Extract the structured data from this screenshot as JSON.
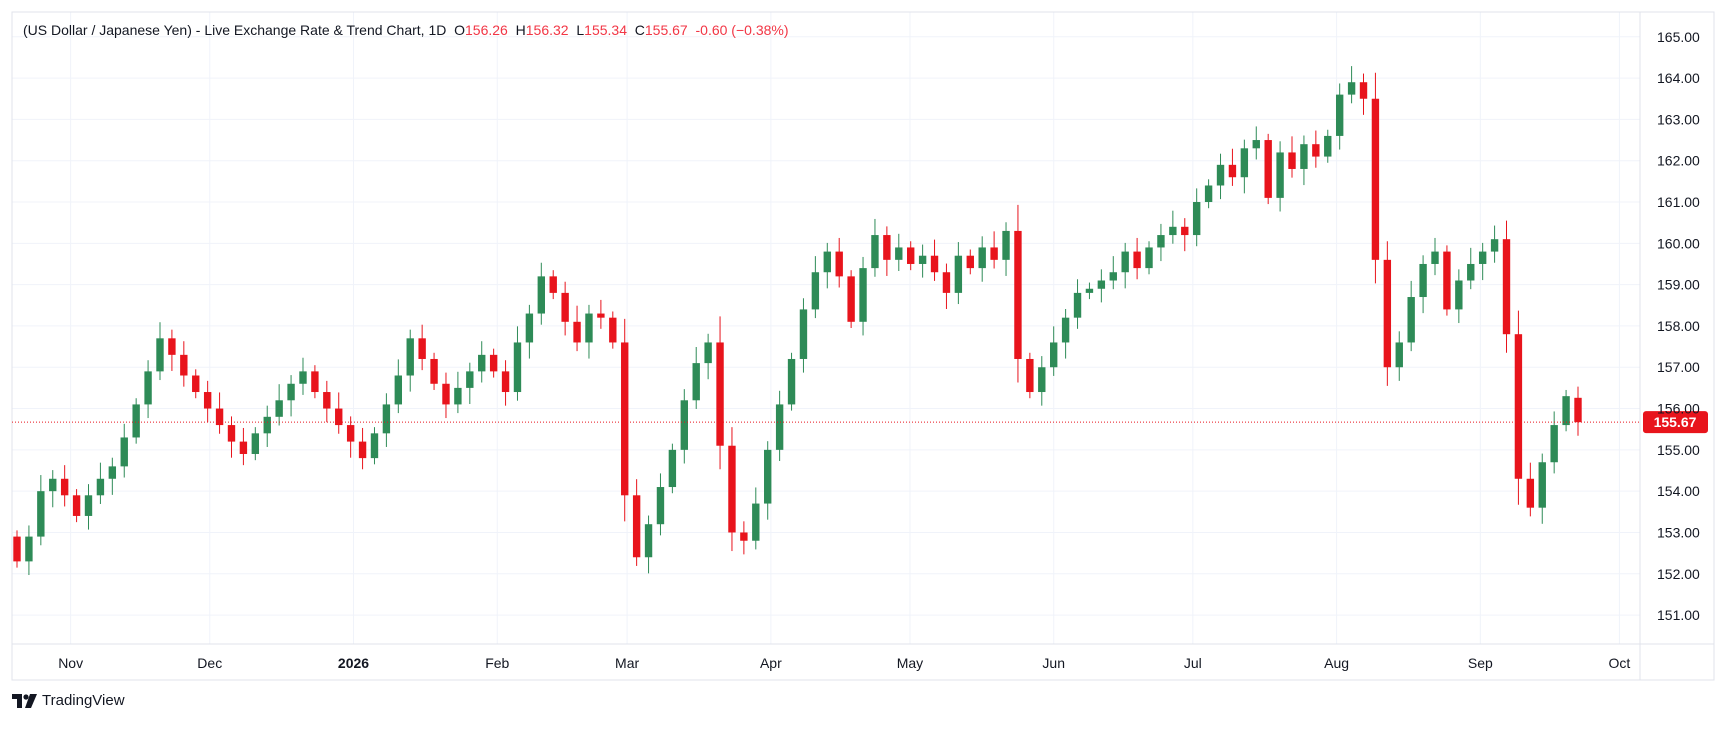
{
  "header": {
    "title": "(US Dollar / Japanese Yen) - Live Exchange Rate & Trend Chart, 1D",
    "o_label": "O",
    "o_value": "156.26",
    "h_label": "H",
    "h_value": "156.32",
    "l_label": "L",
    "l_value": "155.34",
    "c_label": "C",
    "c_value": "155.67",
    "change": "-0.60 (−0.38%)"
  },
  "brand": {
    "name": "TradingView"
  },
  "colors": {
    "up": "#2e8b57",
    "down": "#e8141c",
    "last_price": "#e8141c",
    "grid": "#f0f3fa",
    "text": "#131722"
  },
  "chart_data": {
    "type": "candlestick",
    "title": "(US Dollar / Japanese Yen) - Live Exchange Rate & Trend Chart, 1D",
    "interval": "1D",
    "ylim": [
      150.3,
      165.6
    ],
    "y_ticks": [
      165,
      164,
      163,
      162,
      161,
      160,
      159,
      158,
      157,
      156,
      155,
      154,
      153,
      152,
      151
    ],
    "x_ticks": [
      {
        "label": "Nov",
        "date": "2025-11-01"
      },
      {
        "label": "Dec",
        "date": "2025-12-01"
      },
      {
        "label": "2026",
        "date": "2026-01-01"
      },
      {
        "label": "Feb",
        "date": "2026-02-01"
      },
      {
        "label": "Mar",
        "date": "2026-03-01"
      },
      {
        "label": "Apr",
        "date": "2026-04-01"
      },
      {
        "label": "May",
        "date": "2026-05-01"
      },
      {
        "label": "Jun",
        "date": "2026-06-01"
      },
      {
        "label": "Jul",
        "date": "2026-07-01"
      },
      {
        "label": "Aug",
        "date": "2026-08-01"
      },
      {
        "label": "Sep",
        "date": "2026-09-01"
      },
      {
        "label": "Oct",
        "date": "2026-10-01"
      }
    ],
    "last_price": 155.67,
    "last_price_label": "155.67",
    "grid": true,
    "close_series": [
      152.3,
      152.9,
      154.0,
      154.3,
      153.9,
      153.4,
      153.9,
      154.3,
      154.6,
      155.3,
      156.1,
      156.9,
      157.7,
      157.3,
      156.8,
      156.4,
      156.0,
      155.6,
      155.2,
      154.9,
      155.4,
      155.8,
      156.2,
      156.6,
      156.9,
      156.4,
      156.0,
      155.6,
      155.2,
      154.8,
      155.4,
      156.1,
      156.8,
      157.7,
      157.2,
      156.6,
      156.1,
      156.5,
      156.9,
      157.3,
      156.9,
      156.4,
      157.6,
      158.3,
      159.2,
      158.8,
      158.1,
      157.6,
      158.3,
      158.2,
      157.6,
      153.9,
      152.4,
      153.2,
      154.1,
      155.0,
      156.2,
      157.1,
      157.6,
      155.1,
      153.0,
      152.8,
      153.7,
      155.0,
      156.1,
      157.2,
      158.4,
      159.3,
      159.8,
      159.2,
      158.1,
      159.4,
      160.2,
      159.6,
      159.9,
      159.5,
      159.7,
      159.3,
      158.8,
      159.7,
      159.4,
      159.9,
      159.6,
      160.3,
      157.2,
      156.4,
      157.0,
      157.6,
      158.2,
      158.8,
      158.9,
      159.1,
      159.3,
      159.8,
      159.4,
      159.9,
      160.2,
      160.4,
      160.2,
      161.0,
      161.4,
      161.9,
      161.6,
      162.3,
      162.5,
      161.1,
      162.2,
      161.8,
      162.4,
      162.1,
      162.6,
      163.6,
      163.9,
      163.5,
      159.6,
      157.0,
      157.6,
      158.7,
      159.5,
      159.8,
      158.4,
      159.1,
      159.5,
      159.8,
      160.1,
      157.8,
      154.3,
      153.6,
      154.7,
      155.6,
      156.3,
      155.67
    ]
  }
}
